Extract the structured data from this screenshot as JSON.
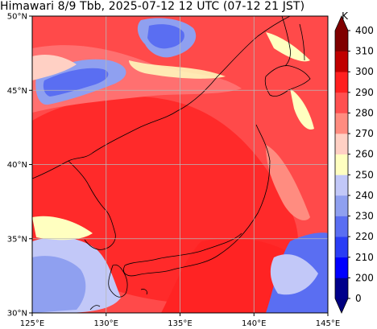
{
  "title": "Himawari 8/9 Tbb, 2025-07-12 12 UTC (07-12 21 JST)",
  "map": {
    "lon_labels": [
      "125°E",
      "130°E",
      "135°E",
      "140°E",
      "145°E"
    ],
    "lat_labels": [
      "50°N",
      "45°N",
      "40°N",
      "35°N",
      "30°N"
    ]
  },
  "colorbar": {
    "unit": "K",
    "levels": [
      "200",
      "210",
      "220",
      "230",
      "240",
      "250",
      "260",
      "270",
      "280",
      "290",
      "300",
      "310",
      "400"
    ],
    "bottom_label": "0",
    "colors": [
      "#00008b",
      "#0000ff",
      "#2a3df5",
      "#5a6ef2",
      "#8fa0f0",
      "#c2c8f8",
      "#ffffc0",
      "#ffd0c4",
      "#ff8c80",
      "#ff5050",
      "#ff2020",
      "#c00000",
      "#800000"
    ],
    "extend_colors": {
      "low": "#000080",
      "high": "#800000"
    }
  }
}
